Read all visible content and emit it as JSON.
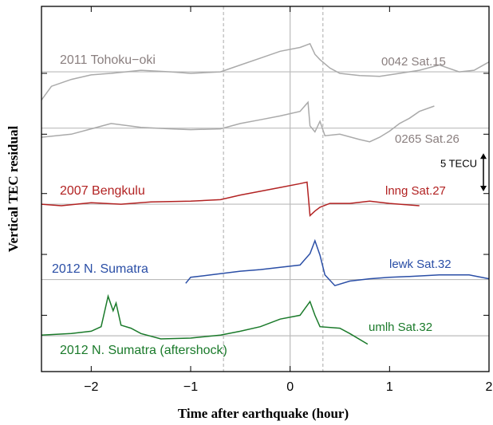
{
  "chart_data": {
    "type": "line",
    "xlabel": "Time after earthquake (hour)",
    "ylabel": "Vertical TEC residual",
    "xlim": [
      -2.5,
      2
    ],
    "xticks": [
      {
        "value": -2,
        "label": "−2"
      },
      {
        "value": -1,
        "label": "−1"
      },
      0,
      1,
      2
    ],
    "ylim": [
      0,
      48
    ],
    "yticks": [
      7.4,
      15.4,
      23.4,
      31.2,
      39.2
    ],
    "solid_vlines": [
      0
    ],
    "dashed_vlines": [
      -0.67,
      0.33
    ],
    "scale_bar": {
      "label": "5 TECU",
      "value": 5
    },
    "series": [
      {
        "name": "0042 Sat.15",
        "event": "2011 Tohoku−oki",
        "color": "#aaaaaa",
        "label_color": "#8a7f7f",
        "baseline": 39.4,
        "x": [
          -2.5,
          -2.4,
          -2.2,
          -2.0,
          -1.8,
          -1.5,
          -1.2,
          -1.0,
          -0.7,
          -0.5,
          -0.3,
          -0.1,
          0.1,
          0.2,
          0.25,
          0.3,
          0.4,
          0.5,
          0.7,
          0.9,
          1.1,
          1.3,
          1.5,
          1.7,
          1.85,
          2.0
        ],
        "values": [
          35.7,
          37.5,
          38.4,
          39.0,
          39.2,
          39.6,
          39.4,
          39.2,
          39.4,
          40.3,
          41.2,
          42.1,
          42.6,
          43.1,
          41.7,
          41.0,
          39.9,
          39.2,
          38.9,
          38.8,
          39.2,
          39.6,
          40.3,
          39.4,
          39.6,
          40.7
        ]
      },
      {
        "name": "0265 Sat.26",
        "color": "#aaaaaa",
        "label_color": "#8a7f7f",
        "baseline": 32.0,
        "x": [
          -2.5,
          -2.2,
          -2.0,
          -1.8,
          -1.5,
          -1.2,
          -1.0,
          -0.7,
          -0.5,
          -0.3,
          -0.1,
          0.1,
          0.18,
          0.2,
          0.25,
          0.3,
          0.35,
          0.5,
          0.7,
          0.8,
          0.9,
          1.0,
          1.1,
          1.2,
          1.3,
          1.45
        ],
        "values": [
          30.8,
          31.2,
          31.9,
          32.6,
          32.1,
          31.9,
          31.8,
          31.9,
          32.6,
          33.1,
          33.6,
          34.2,
          35.4,
          32.3,
          31.5,
          32.9,
          31.0,
          31.2,
          30.5,
          30.2,
          30.8,
          31.6,
          32.6,
          33.3,
          34.2,
          34.9
        ]
      },
      {
        "name": "lnng Sat.27",
        "event": "2007 Bengkulu",
        "color": "#b22222",
        "label_color": "#b22222",
        "baseline": 22.0,
        "x": [
          -2.5,
          -2.3,
          -2.0,
          -1.7,
          -1.4,
          -1.0,
          -0.7,
          -0.5,
          -0.3,
          -0.1,
          0.1,
          0.17,
          0.2,
          0.25,
          0.3,
          0.4,
          0.6,
          0.8,
          1.0,
          1.3
        ],
        "values": [
          22.0,
          21.8,
          22.2,
          22.0,
          22.3,
          22.4,
          22.6,
          23.2,
          23.7,
          24.2,
          24.7,
          24.9,
          20.5,
          21.1,
          21.6,
          22.1,
          22.1,
          22.4,
          22.1,
          21.8
        ]
      },
      {
        "name": "lewk Sat.32",
        "event": "2012 N. Sumatra",
        "color": "#2a4ea6",
        "label_color": "#2a4ea6",
        "baseline": 12.1,
        "x": [
          -1.05,
          -1.0,
          -0.8,
          -0.5,
          -0.3,
          -0.1,
          0.1,
          0.2,
          0.25,
          0.3,
          0.35,
          0.45,
          0.6,
          0.8,
          1.0,
          1.2,
          1.5,
          1.8,
          2.0
        ],
        "values": [
          11.6,
          12.4,
          12.7,
          13.2,
          13.4,
          13.7,
          14.0,
          15.5,
          17.2,
          15.3,
          12.7,
          11.3,
          11.9,
          12.2,
          12.4,
          12.5,
          12.7,
          12.7,
          12.2
        ]
      },
      {
        "name": "umlh Sat.32",
        "event": "2012 N. Sumatra (aftershock)",
        "color": "#1a7a2a",
        "label_color": "#1a7a2a",
        "baseline": 4.7,
        "x": [
          -2.5,
          -2.2,
          -2.0,
          -1.9,
          -1.83,
          -1.78,
          -1.75,
          -1.7,
          -1.6,
          -1.5,
          -1.3,
          -1.0,
          -0.7,
          -0.5,
          -0.3,
          -0.1,
          0.1,
          0.2,
          0.25,
          0.3,
          0.5,
          0.6,
          0.78
        ],
        "values": [
          4.8,
          5.0,
          5.3,
          5.9,
          9.9,
          8.0,
          9.0,
          6.1,
          5.7,
          5.0,
          4.3,
          4.4,
          4.8,
          5.3,
          5.9,
          6.9,
          7.4,
          9.2,
          7.4,
          5.9,
          5.7,
          5.0,
          3.6
        ]
      }
    ]
  }
}
